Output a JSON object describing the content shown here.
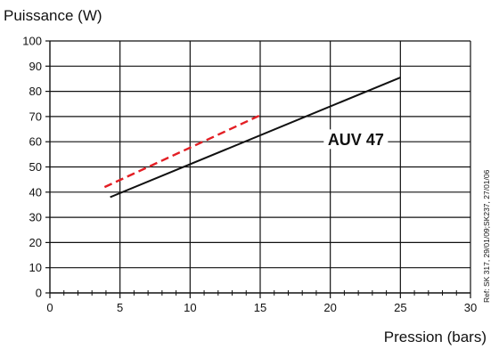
{
  "chart_data": {
    "type": "line",
    "ylabel": "Puissance (W)",
    "xlabel": "Pression (bars)",
    "xlim": [
      0,
      30
    ],
    "ylim": [
      0,
      100
    ],
    "x_major_ticks": [
      0,
      5,
      10,
      15,
      20,
      25,
      30
    ],
    "x_tick_labels": [
      "0",
      "5",
      "10",
      "15",
      "20",
      "25",
      "30"
    ],
    "y_major_ticks": [
      0,
      10,
      20,
      30,
      40,
      50,
      60,
      70,
      80,
      90,
      100
    ],
    "y_tick_labels": [
      "0",
      "10",
      "20",
      "30",
      "40",
      "50",
      "60",
      "70",
      "80",
      "90",
      "100"
    ],
    "x_minor_step": 1,
    "grid": true,
    "series": [
      {
        "name": "AUV 47",
        "style": "solid",
        "color": "#111111",
        "x": [
          4.3,
          25
        ],
        "y": [
          38,
          85.5
        ]
      },
      {
        "style": "dashed",
        "color": "#e31e24",
        "x": [
          3.9,
          15
        ],
        "y": [
          42,
          70.5
        ]
      }
    ],
    "annotations": [
      {
        "text": "AUV 47",
        "x": 25,
        "y": 61
      }
    ],
    "side_note": "Ref: SK 317, 29/01/09;SK237, 27/01/06"
  }
}
